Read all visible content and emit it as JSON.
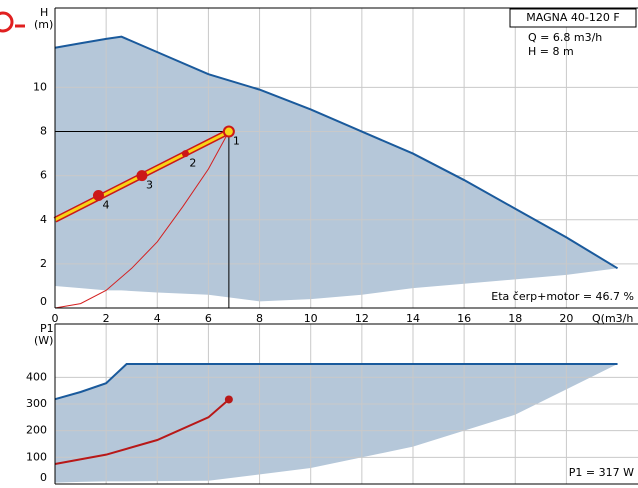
{
  "chart_data": [
    {
      "type": "line",
      "ylabel_lines": [
        "H",
        "(m)"
      ],
      "xlabel": "Q(m3/h",
      "xlim": [
        0,
        22.8
      ],
      "ylim": [
        0,
        13.6
      ],
      "xticks": [
        0,
        2,
        4,
        6,
        8,
        10,
        12,
        14,
        16,
        18,
        20
      ],
      "yticks": [
        0,
        2,
        4,
        6,
        8,
        10
      ],
      "grid": true,
      "show_xtick_labels": true,
      "series": [
        {
          "kind": "area",
          "color": "#b5c7d9",
          "x": [
            0,
            1,
            2,
            2.6,
            4,
            6,
            8,
            10,
            12,
            14,
            16,
            18,
            20,
            22
          ],
          "values": [
            11.8,
            12.0,
            12.2,
            12.3,
            11.6,
            10.6,
            9.9,
            9.0,
            8.0,
            7.0,
            5.8,
            4.5,
            3.2,
            1.8
          ],
          "lower": [
            1.0,
            0.9,
            0.8,
            0.8,
            0.7,
            0.6,
            0.3,
            0.4,
            0.6,
            0.9,
            1.1,
            1.3,
            1.5,
            1.8
          ]
        },
        {
          "kind": "line",
          "color": "#1a5a9c",
          "x": [
            0,
            1,
            2,
            2.6,
            4,
            6,
            8,
            10,
            12,
            14,
            16,
            18,
            20,
            22
          ],
          "values": [
            11.8,
            12.0,
            12.2,
            12.3,
            11.6,
            10.6,
            9.9,
            9.0,
            8.0,
            7.0,
            5.8,
            4.5,
            3.2,
            1.8
          ]
        },
        {
          "kind": "line",
          "color": "#d42020",
          "x": [
            0,
            1,
            2,
            3,
            4,
            5,
            6,
            6.8
          ],
          "values": [
            0,
            0.2,
            0.8,
            1.8,
            3.0,
            4.6,
            6.3,
            8.0
          ]
        },
        {
          "kind": "band",
          "color": "#f7d417",
          "edge": "#cc1818",
          "x": [
            0,
            6.8
          ],
          "values": [
            4.0,
            8.0
          ]
        }
      ],
      "duty_point": {
        "x": 6.8,
        "y": 8
      },
      "points": {
        "labels": [
          "1",
          "2",
          "3",
          "4"
        ],
        "x": [
          6.8,
          5.1,
          3.4,
          1.7
        ],
        "y": [
          8,
          7,
          6,
          5.1
        ],
        "color": "#cc1818"
      },
      "info_box": {
        "title": "MAGNA 40-120 F",
        "lines": [
          "Q = 6.8 m3/h",
          "H = 8 m"
        ]
      },
      "note": "Eta čerp+motor = 46.7 %"
    },
    {
      "type": "line",
      "ylabel_lines": [
        "P1",
        "(W)"
      ],
      "xlim": [
        0,
        22.8
      ],
      "ylim": [
        0,
        600
      ],
      "xticks": [
        0,
        2,
        4,
        6,
        8,
        10,
        12,
        14,
        16,
        18,
        20
      ],
      "yticks": [
        0,
        100,
        200,
        300,
        400
      ],
      "grid": true,
      "show_xtick_labels": false,
      "series": [
        {
          "kind": "area",
          "color": "#b5c7d9",
          "x": [
            0,
            1,
            2,
            2.8,
            6,
            10,
            14,
            18,
            22
          ],
          "values": [
            318,
            345,
            378,
            450,
            450,
            450,
            450,
            450,
            450
          ],
          "lower": [
            5,
            8,
            10,
            10,
            12,
            60,
            140,
            260,
            450
          ]
        },
        {
          "kind": "line",
          "color": "#1a5a9c",
          "x": [
            0,
            1,
            2,
            2.8,
            6,
            10,
            14,
            18,
            22
          ],
          "values": [
            318,
            345,
            378,
            450,
            450,
            450,
            450,
            450,
            450
          ]
        },
        {
          "kind": "line",
          "color": "#b81818",
          "end_marker": true,
          "x": [
            0,
            2,
            4,
            6,
            6.8
          ],
          "values": [
            75,
            110,
            165,
            250,
            317
          ]
        }
      ],
      "note": "P1 = 317 W"
    }
  ]
}
